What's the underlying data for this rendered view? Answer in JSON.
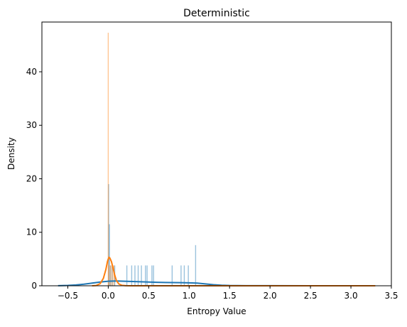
{
  "chart_data": {
    "type": "histogram",
    "title": "Deterministic",
    "xlabel": "Entropy Value",
    "ylabel": "Density",
    "xlim": [
      -0.82,
      3.5
    ],
    "ylim": [
      0,
      49.3
    ],
    "xticks": [
      -0.5,
      0.0,
      0.5,
      1.0,
      1.5,
      2.0,
      2.5,
      3.0,
      3.5
    ],
    "xtick_labels": [
      "−0.5",
      "0.0",
      "0.5",
      "1.0",
      "1.5",
      "2.0",
      "2.5",
      "3.0",
      "3.5"
    ],
    "yticks": [
      0,
      10,
      20,
      30,
      40
    ],
    "ytick_labels": [
      "0",
      "10",
      "20",
      "30",
      "40"
    ],
    "grid": false,
    "legend": "none",
    "series": [
      {
        "color": "#1f77b4",
        "bar_opacity": 0.45,
        "bars": [
          {
            "x": 0.005,
            "h": 19.0
          },
          {
            "x": 0.015,
            "h": 11.5
          },
          {
            "x": 0.03,
            "h": 3.8
          },
          {
            "x": 0.05,
            "h": 3.8
          },
          {
            "x": 0.08,
            "h": 3.8
          },
          {
            "x": 0.23,
            "h": 3.8
          },
          {
            "x": 0.29,
            "h": 3.8
          },
          {
            "x": 0.33,
            "h": 3.8
          },
          {
            "x": 0.37,
            "h": 3.8
          },
          {
            "x": 0.41,
            "h": 3.8
          },
          {
            "x": 0.46,
            "h": 3.8
          },
          {
            "x": 0.48,
            "h": 3.8
          },
          {
            "x": 0.54,
            "h": 3.8
          },
          {
            "x": 0.56,
            "h": 3.8
          },
          {
            "x": 0.79,
            "h": 3.8
          },
          {
            "x": 0.9,
            "h": 3.8
          },
          {
            "x": 0.94,
            "h": 3.8
          },
          {
            "x": 0.99,
            "h": 3.8
          },
          {
            "x": 1.08,
            "h": 7.6
          }
        ],
        "kde": [
          [
            -0.62,
            0.02
          ],
          [
            -0.5,
            0.06
          ],
          [
            -0.4,
            0.15
          ],
          [
            -0.3,
            0.3
          ],
          [
            -0.2,
            0.5
          ],
          [
            -0.1,
            0.7
          ],
          [
            0.0,
            0.85
          ],
          [
            0.1,
            0.9
          ],
          [
            0.2,
            0.85
          ],
          [
            0.3,
            0.8
          ],
          [
            0.4,
            0.75
          ],
          [
            0.5,
            0.7
          ],
          [
            0.6,
            0.65
          ],
          [
            0.7,
            0.62
          ],
          [
            0.8,
            0.6
          ],
          [
            0.9,
            0.58
          ],
          [
            1.0,
            0.55
          ],
          [
            1.1,
            0.5
          ],
          [
            1.2,
            0.35
          ],
          [
            1.3,
            0.2
          ],
          [
            1.4,
            0.1
          ],
          [
            1.5,
            0.05
          ],
          [
            1.7,
            0.02
          ],
          [
            2.0,
            0.01
          ],
          [
            2.5,
            0.0
          ],
          [
            3.0,
            0.0
          ],
          [
            3.3,
            0.0
          ]
        ]
      },
      {
        "color": "#ff7f0e",
        "bar_opacity": 0.45,
        "bars": [
          {
            "x": 0.0,
            "h": 47.3
          },
          {
            "x": 0.01,
            "h": 3.8
          },
          {
            "x": 0.03,
            "h": 3.8
          },
          {
            "x": 0.05,
            "h": 3.8
          },
          {
            "x": 0.07,
            "h": 3.8
          }
        ],
        "kde": [
          [
            -0.2,
            0.0
          ],
          [
            -0.15,
            0.05
          ],
          [
            -0.1,
            0.4
          ],
          [
            -0.06,
            1.4
          ],
          [
            -0.03,
            3.0
          ],
          [
            -0.01,
            4.5
          ],
          [
            0.0,
            5.0
          ],
          [
            0.01,
            5.3
          ],
          [
            0.02,
            5.2
          ],
          [
            0.04,
            4.5
          ],
          [
            0.06,
            3.3
          ],
          [
            0.08,
            2.0
          ],
          [
            0.1,
            1.0
          ],
          [
            0.13,
            0.35
          ],
          [
            0.17,
            0.08
          ],
          [
            0.22,
            0.02
          ],
          [
            0.3,
            0.0
          ],
          [
            0.5,
            0.0
          ],
          [
            1.0,
            0.0
          ],
          [
            1.5,
            0.0
          ],
          [
            2.0,
            0.0
          ],
          [
            2.5,
            0.0
          ],
          [
            3.0,
            0.0
          ],
          [
            3.3,
            0.0
          ]
        ]
      }
    ]
  }
}
